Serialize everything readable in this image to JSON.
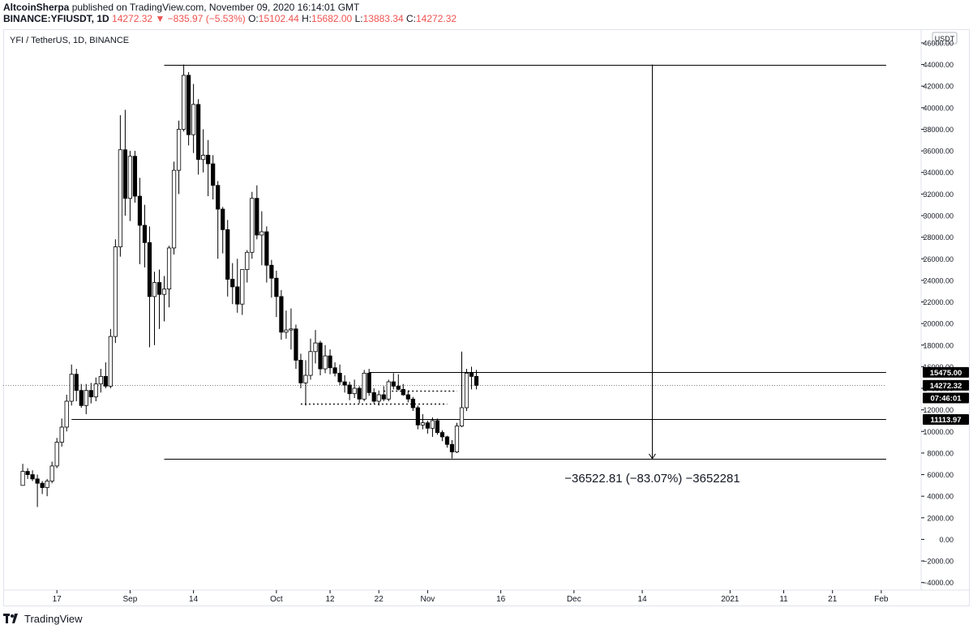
{
  "header": {
    "author": "AltcoinSherpa",
    "published_text": " published on TradingView.com, November 09, 2020 16:14:01 GMT",
    "symbol": "BINANCE:YFIUSDT, 1D",
    "last": "14272.32",
    "change_arrow": "▼",
    "change": "−835.97 (−5.53%)",
    "o_label": "O:",
    "o_value": "15102.44",
    "h_label": "H:",
    "h_value": "15682.00",
    "l_label": "L:",
    "l_value": "13883.34",
    "c_label": "C:",
    "c_value": "14272.32"
  },
  "chart_title": "YFI / TetherUS, 1D, BINANCE",
  "currency_badge": "USDT",
  "measure_label": "−36522.81 (−83.07%) −3652281",
  "price_badges": [
    {
      "value": "15475.00",
      "price": 15475
    },
    {
      "value": "14272.32",
      "price": 14272.32
    },
    {
      "value": "07:46:01",
      "price": 13100
    },
    {
      "value": "11113.97",
      "price": 11113.97
    }
  ],
  "footer": {
    "brand": "TradingView"
  },
  "colors": {
    "up_body": "#ffffff",
    "down_body": "#000000",
    "wick": "#000000",
    "grid_text": "#131722",
    "frame": "#e0e3eb"
  },
  "chart_data": {
    "type": "candlestick",
    "title": "YFI / TetherUS, 1D, BINANCE",
    "y_axis": {
      "ticks": [
        46000,
        44000,
        42000,
        40000,
        38000,
        36000,
        34000,
        32000,
        30000,
        28000,
        26000,
        24000,
        22000,
        20000,
        18000,
        16000,
        14000,
        12000,
        10000,
        8000,
        6000,
        4000,
        2000,
        0,
        -2000,
        -4000
      ],
      "tick_labels": [
        "46000.00",
        "44000.00",
        "42000.00",
        "40000.00",
        "38000.00",
        "36000.00",
        "34000.00",
        "32000.00",
        "30000.00",
        "28000.00",
        "26000.00",
        "24000.00",
        "22000.00",
        "20000.00",
        "18000.00",
        "16000.00",
        "14000.00",
        "12000.00",
        "10000.00",
        "8000.00",
        "6000.00",
        "4000.00",
        "2000.00",
        "0.00",
        "−2000.00",
        "−4000.00"
      ],
      "ylim": [
        -4700,
        47200
      ]
    },
    "x_axis": {
      "ticks": [
        {
          "label": "17",
          "day": 11
        },
        {
          "label": "Sep",
          "day": 26
        },
        {
          "label": "14",
          "day": 39
        },
        {
          "label": "Oct",
          "day": 56
        },
        {
          "label": "12",
          "day": 67
        },
        {
          "label": "22",
          "day": 77
        },
        {
          "label": "Nov",
          "day": 87
        },
        {
          "label": "16",
          "day": 102
        },
        {
          "label": "Dec",
          "day": 117
        },
        {
          "label": "14",
          "day": 131
        },
        {
          "label": "2021",
          "day": 149
        },
        {
          "label": "11",
          "day": 160
        },
        {
          "label": "21",
          "day": 170
        },
        {
          "label": "Feb",
          "day": 180
        }
      ],
      "xlim": [
        0,
        188
      ]
    },
    "candles": [
      {
        "d": 4,
        "o": 5000,
        "h": 7000,
        "l": 5000,
        "c": 6300
      },
      {
        "d": 5,
        "o": 6300,
        "h": 6600,
        "l": 5600,
        "c": 6000
      },
      {
        "d": 6,
        "o": 6000,
        "h": 6400,
        "l": 5400,
        "c": 5600
      },
      {
        "d": 7,
        "o": 5600,
        "h": 6000,
        "l": 3000,
        "c": 5200
      },
      {
        "d": 8,
        "o": 5200,
        "h": 5400,
        "l": 4200,
        "c": 4800
      },
      {
        "d": 9,
        "o": 4800,
        "h": 5600,
        "l": 4000,
        "c": 5400
      },
      {
        "d": 10,
        "o": 5400,
        "h": 7200,
        "l": 5200,
        "c": 6800
      },
      {
        "d": 11,
        "o": 6800,
        "h": 9400,
        "l": 6600,
        "c": 9000
      },
      {
        "d": 12,
        "o": 9000,
        "h": 11200,
        "l": 8600,
        "c": 10400
      },
      {
        "d": 13,
        "o": 10400,
        "h": 13400,
        "l": 10000,
        "c": 12800
      },
      {
        "d": 14,
        "o": 12800,
        "h": 16200,
        "l": 12400,
        "c": 15300
      },
      {
        "d": 15,
        "o": 15300,
        "h": 15800,
        "l": 12800,
        "c": 13800
      },
      {
        "d": 16,
        "o": 13800,
        "h": 14400,
        "l": 12200,
        "c": 12400
      },
      {
        "d": 17,
        "o": 12400,
        "h": 14400,
        "l": 11600,
        "c": 13800
      },
      {
        "d": 18,
        "o": 13800,
        "h": 14500,
        "l": 12600,
        "c": 13200
      },
      {
        "d": 19,
        "o": 13200,
        "h": 15000,
        "l": 12800,
        "c": 14400
      },
      {
        "d": 20,
        "o": 14400,
        "h": 15800,
        "l": 13600,
        "c": 15100
      },
      {
        "d": 21,
        "o": 15100,
        "h": 16400,
        "l": 14000,
        "c": 14200
      },
      {
        "d": 22,
        "o": 14200,
        "h": 19500,
        "l": 14000,
        "c": 18800
      },
      {
        "d": 23,
        "o": 18800,
        "h": 27800,
        "l": 18200,
        "c": 27100
      },
      {
        "d": 24,
        "o": 27100,
        "h": 39300,
        "l": 26200,
        "c": 36100
      },
      {
        "d": 25,
        "o": 36100,
        "h": 39800,
        "l": 30000,
        "c": 31600
      },
      {
        "d": 26,
        "o": 31600,
        "h": 36000,
        "l": 29500,
        "c": 35500
      },
      {
        "d": 27,
        "o": 35500,
        "h": 36000,
        "l": 31200,
        "c": 31800
      },
      {
        "d": 28,
        "o": 31800,
        "h": 33500,
        "l": 25500,
        "c": 29100
      },
      {
        "d": 29,
        "o": 29100,
        "h": 31000,
        "l": 25200,
        "c": 27500
      },
      {
        "d": 30,
        "o": 27500,
        "h": 29000,
        "l": 17800,
        "c": 22500
      },
      {
        "d": 31,
        "o": 22500,
        "h": 24800,
        "l": 18000,
        "c": 23800
      },
      {
        "d": 32,
        "o": 23800,
        "h": 25000,
        "l": 19500,
        "c": 22700
      },
      {
        "d": 33,
        "o": 22700,
        "h": 24400,
        "l": 20200,
        "c": 23200
      },
      {
        "d": 34,
        "o": 23200,
        "h": 27200,
        "l": 21500,
        "c": 27000
      },
      {
        "d": 35,
        "o": 27000,
        "h": 35000,
        "l": 26400,
        "c": 34200
      },
      {
        "d": 36,
        "o": 34200,
        "h": 38800,
        "l": 32000,
        "c": 38000
      },
      {
        "d": 37,
        "o": 38000,
        "h": 44000,
        "l": 37800,
        "c": 43000
      },
      {
        "d": 38,
        "o": 43000,
        "h": 43300,
        "l": 36500,
        "c": 37500
      },
      {
        "d": 39,
        "o": 37500,
        "h": 42200,
        "l": 35800,
        "c": 40300
      },
      {
        "d": 40,
        "o": 40300,
        "h": 40800,
        "l": 33800,
        "c": 35200
      },
      {
        "d": 41,
        "o": 35200,
        "h": 38000,
        "l": 34000,
        "c": 35600
      },
      {
        "d": 42,
        "o": 35600,
        "h": 37000,
        "l": 31800,
        "c": 34800
      },
      {
        "d": 43,
        "o": 34800,
        "h": 35600,
        "l": 31500,
        "c": 32800
      },
      {
        "d": 44,
        "o": 32800,
        "h": 33200,
        "l": 26000,
        "c": 30600
      },
      {
        "d": 45,
        "o": 30600,
        "h": 30800,
        "l": 26500,
        "c": 28700
      },
      {
        "d": 46,
        "o": 28700,
        "h": 29600,
        "l": 22500,
        "c": 24100
      },
      {
        "d": 47,
        "o": 24100,
        "h": 25600,
        "l": 21800,
        "c": 23400
      },
      {
        "d": 48,
        "o": 23400,
        "h": 26000,
        "l": 21000,
        "c": 21800
      },
      {
        "d": 49,
        "o": 21800,
        "h": 25000,
        "l": 20800,
        "c": 25000
      },
      {
        "d": 50,
        "o": 25000,
        "h": 26800,
        "l": 23800,
        "c": 26600
      },
      {
        "d": 51,
        "o": 26600,
        "h": 32200,
        "l": 26000,
        "c": 31600
      },
      {
        "d": 52,
        "o": 31600,
        "h": 32800,
        "l": 27800,
        "c": 28200
      },
      {
        "d": 53,
        "o": 28200,
        "h": 30400,
        "l": 25400,
        "c": 28500
      },
      {
        "d": 54,
        "o": 28500,
        "h": 29000,
        "l": 23800,
        "c": 25400
      },
      {
        "d": 55,
        "o": 25400,
        "h": 25900,
        "l": 22400,
        "c": 24200
      },
      {
        "d": 56,
        "o": 24200,
        "h": 24900,
        "l": 20600,
        "c": 22500
      },
      {
        "d": 57,
        "o": 22500,
        "h": 23100,
        "l": 18500,
        "c": 19200
      },
      {
        "d": 58,
        "o": 19200,
        "h": 21200,
        "l": 18600,
        "c": 19400
      },
      {
        "d": 59,
        "o": 19400,
        "h": 21400,
        "l": 17600,
        "c": 19500
      },
      {
        "d": 60,
        "o": 19500,
        "h": 19900,
        "l": 15800,
        "c": 16600
      },
      {
        "d": 61,
        "o": 16600,
        "h": 17200,
        "l": 14000,
        "c": 14500
      },
      {
        "d": 62,
        "o": 14500,
        "h": 16600,
        "l": 12400,
        "c": 15200
      },
      {
        "d": 63,
        "o": 15200,
        "h": 18600,
        "l": 14800,
        "c": 17400
      },
      {
        "d": 64,
        "o": 17400,
        "h": 19400,
        "l": 16300,
        "c": 18200
      },
      {
        "d": 65,
        "o": 18200,
        "h": 18400,
        "l": 15200,
        "c": 15800
      },
      {
        "d": 66,
        "o": 15800,
        "h": 18000,
        "l": 15400,
        "c": 17000
      },
      {
        "d": 67,
        "o": 17000,
        "h": 17600,
        "l": 15300,
        "c": 15900
      },
      {
        "d": 68,
        "o": 15900,
        "h": 16400,
        "l": 15100,
        "c": 15400
      },
      {
        "d": 69,
        "o": 15400,
        "h": 16200,
        "l": 14300,
        "c": 14600
      },
      {
        "d": 70,
        "o": 14600,
        "h": 15200,
        "l": 13600,
        "c": 14300
      },
      {
        "d": 71,
        "o": 14300,
        "h": 14600,
        "l": 12900,
        "c": 13500
      },
      {
        "d": 72,
        "o": 13500,
        "h": 14800,
        "l": 13100,
        "c": 14000
      },
      {
        "d": 73,
        "o": 14000,
        "h": 14200,
        "l": 12600,
        "c": 13000
      },
      {
        "d": 74,
        "o": 13000,
        "h": 15700,
        "l": 12800,
        "c": 15400
      },
      {
        "d": 75,
        "o": 15400,
        "h": 15800,
        "l": 13300,
        "c": 13600
      },
      {
        "d": 76,
        "o": 13600,
        "h": 14000,
        "l": 12600,
        "c": 12800
      },
      {
        "d": 77,
        "o": 12800,
        "h": 13800,
        "l": 12400,
        "c": 13400
      },
      {
        "d": 78,
        "o": 13400,
        "h": 14200,
        "l": 12800,
        "c": 13000
      },
      {
        "d": 79,
        "o": 13000,
        "h": 14800,
        "l": 12800,
        "c": 14600
      },
      {
        "d": 80,
        "o": 14600,
        "h": 15400,
        "l": 13900,
        "c": 14200
      },
      {
        "d": 81,
        "o": 14200,
        "h": 15300,
        "l": 13800,
        "c": 13900
      },
      {
        "d": 82,
        "o": 13900,
        "h": 14400,
        "l": 13300,
        "c": 13400
      },
      {
        "d": 83,
        "o": 13400,
        "h": 13800,
        "l": 12700,
        "c": 13000
      },
      {
        "d": 84,
        "o": 13000,
        "h": 13200,
        "l": 11900,
        "c": 12200
      },
      {
        "d": 85,
        "o": 12200,
        "h": 12400,
        "l": 10200,
        "c": 10600
      },
      {
        "d": 86,
        "o": 10600,
        "h": 11600,
        "l": 10200,
        "c": 10800
      },
      {
        "d": 87,
        "o": 10800,
        "h": 11000,
        "l": 9800,
        "c": 10300
      },
      {
        "d": 88,
        "o": 10300,
        "h": 11300,
        "l": 9500,
        "c": 11000
      },
      {
        "d": 89,
        "o": 11000,
        "h": 11200,
        "l": 9700,
        "c": 9900
      },
      {
        "d": 90,
        "o": 9900,
        "h": 10100,
        "l": 9100,
        "c": 9500
      },
      {
        "d": 91,
        "o": 9500,
        "h": 9600,
        "l": 8500,
        "c": 8800
      },
      {
        "d": 92,
        "o": 8800,
        "h": 9200,
        "l": 7500,
        "c": 8100
      },
      {
        "d": 93,
        "o": 8100,
        "h": 10800,
        "l": 8000,
        "c": 10500
      },
      {
        "d": 94,
        "o": 10500,
        "h": 17400,
        "l": 10400,
        "c": 12200
      },
      {
        "d": 95,
        "o": 12200,
        "h": 15800,
        "l": 11900,
        "c": 15400
      },
      {
        "d": 96,
        "o": 15400,
        "h": 16000,
        "l": 13900,
        "c": 15100
      },
      {
        "d": 97,
        "o": 15100,
        "h": 15700,
        "l": 13900,
        "c": 14272
      }
    ],
    "horizontal_lines": [
      {
        "price": 44000,
        "from_day": 33,
        "to_day": 181,
        "style": "solid"
      },
      {
        "price": 15475,
        "from_day": 75,
        "to_day": 181,
        "style": "solid"
      },
      {
        "price": 11113.97,
        "from_day": 14,
        "to_day": 181,
        "style": "solid"
      },
      {
        "price": 7477,
        "from_day": 33,
        "to_day": 181,
        "style": "solid"
      },
      {
        "price": 13800,
        "from_day": 78,
        "to_day": 93,
        "style": "dotted"
      },
      {
        "price": 12600,
        "from_day": 61,
        "to_day": 91,
        "style": "dotted"
      },
      {
        "price": 14272.32,
        "from_day": 0,
        "to_day": 181,
        "style": "dotted-thin"
      }
    ],
    "measure": {
      "day": 133,
      "from_price": 44000,
      "to_price": 7477,
      "change": -36522.81,
      "percent": -83.07
    }
  }
}
